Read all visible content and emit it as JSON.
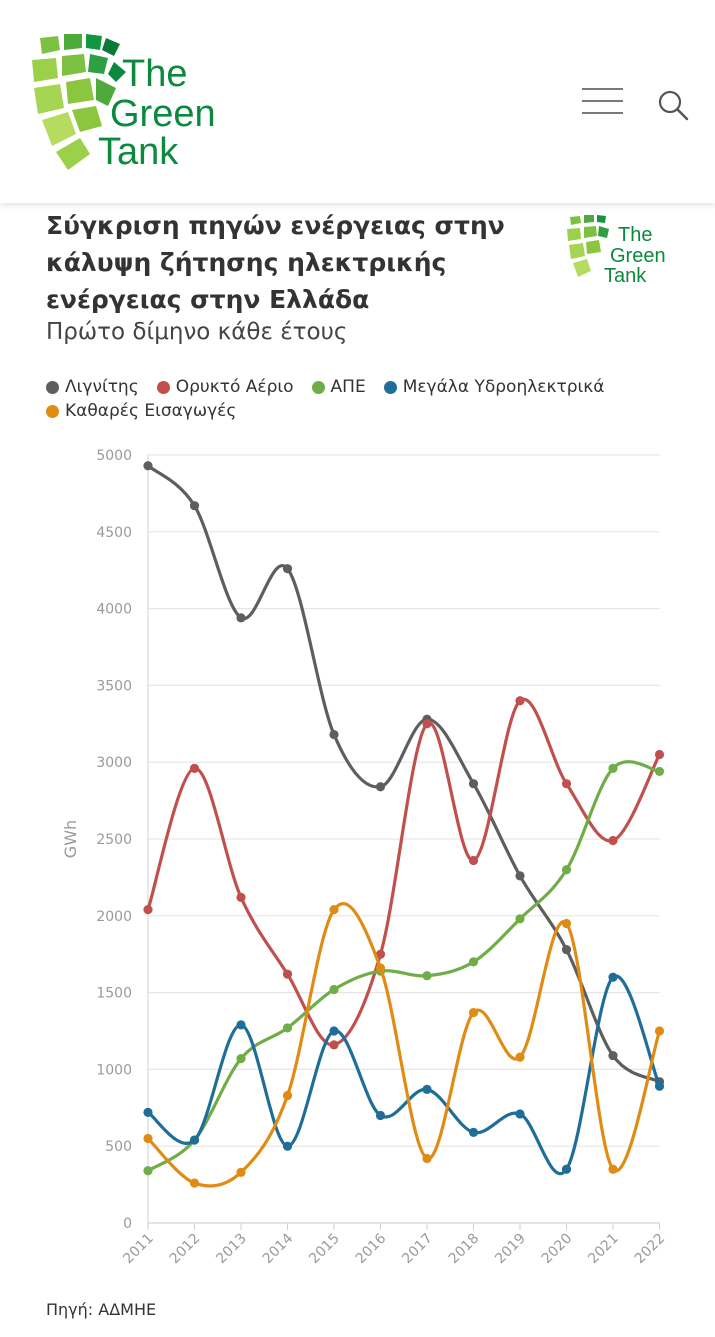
{
  "header": {
    "logo_text": [
      "The",
      "Green",
      "Tank"
    ],
    "menu_icon": "hamburger-menu-icon",
    "search_icon": "search-icon"
  },
  "title": "Σύγκριση πηγών ενέργειας στην κάλυψη ζήτησης ηλεκτρικής ενέργειας στην Ελλάδα",
  "subtitle": "Πρώτο δίμηνο κάθε έτους",
  "source": "Πηγή: ΑΔΜΗΕ",
  "colors": {
    "brand_green": "#7cc142",
    "brand_dark_green": "#0b8a3e",
    "grid": "#e6e6e6",
    "axis_text": "#9a9a9a"
  },
  "chart_data": {
    "type": "line",
    "ylabel": "GWh",
    "xlabel": "",
    "ylim": [
      0,
      5000
    ],
    "yticks": [
      0,
      500,
      1000,
      1500,
      2000,
      2500,
      3000,
      3500,
      4000,
      4500,
      5000
    ],
    "grid": true,
    "legend_position": "top",
    "categories": [
      "2011",
      "2012",
      "2013",
      "2014",
      "2015",
      "2016",
      "2017",
      "2018",
      "2019",
      "2020",
      "2021",
      "2022"
    ],
    "series": [
      {
        "name": "Λιγνίτης",
        "color": "#5e5e5e",
        "values": [
          4930,
          4670,
          3940,
          4260,
          3180,
          2840,
          3280,
          2860,
          2260,
          1780,
          1090,
          920
        ]
      },
      {
        "name": "Ορυκτό Αέριο",
        "color": "#c0504d",
        "values": [
          2040,
          2960,
          2120,
          1620,
          1160,
          1750,
          3250,
          2360,
          3400,
          2860,
          2490,
          3050
        ]
      },
      {
        "name": "ΑΠΕ",
        "color": "#70ad47",
        "values": [
          340,
          540,
          1070,
          1270,
          1520,
          1640,
          1610,
          1700,
          1980,
          2300,
          2960,
          2940
        ]
      },
      {
        "name": "Μεγάλα Υδροηλεκτρικά",
        "color": "#1f6e99",
        "values": [
          720,
          540,
          1290,
          500,
          1250,
          700,
          870,
          590,
          710,
          350,
          1600,
          890
        ]
      },
      {
        "name": "Καθαρές Εισαγωγές",
        "color": "#e08c14",
        "values": [
          550,
          260,
          330,
          830,
          2040,
          1660,
          420,
          1370,
          1080,
          1950,
          350,
          1250
        ]
      }
    ]
  }
}
